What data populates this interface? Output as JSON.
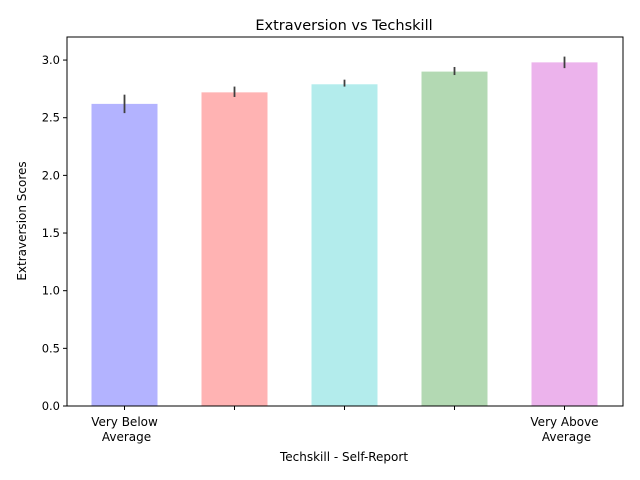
{
  "chart_data": {
    "type": "bar",
    "title": "Extraversion vs Techskill",
    "xlabel": "Techskill - Self-Report",
    "ylabel": "Extraversion Scores",
    "categories": [
      "Very Below\nAverage",
      "",
      "",
      "",
      "Very Above\nAverage"
    ],
    "values": [
      2.62,
      2.72,
      2.79,
      2.9,
      2.98
    ],
    "error_low": [
      2.54,
      2.68,
      2.77,
      2.87,
      2.93
    ],
    "error_high": [
      2.7,
      2.77,
      2.83,
      2.94,
      3.03
    ],
    "colors": [
      "#b3b3ff",
      "#ffb3b3",
      "#b3ecec",
      "#b3d9b3",
      "#ecb3ec"
    ],
    "error_color": "#404040",
    "ylim": [
      0,
      3.2
    ],
    "yticks": [
      0.0,
      0.5,
      1.0,
      1.5,
      2.0,
      2.5,
      3.0
    ],
    "ytick_labels": [
      "0.0",
      "0.5",
      "1.0",
      "1.5",
      "2.0",
      "2.5",
      "3.0"
    ],
    "grid": false,
    "legend": "none"
  }
}
